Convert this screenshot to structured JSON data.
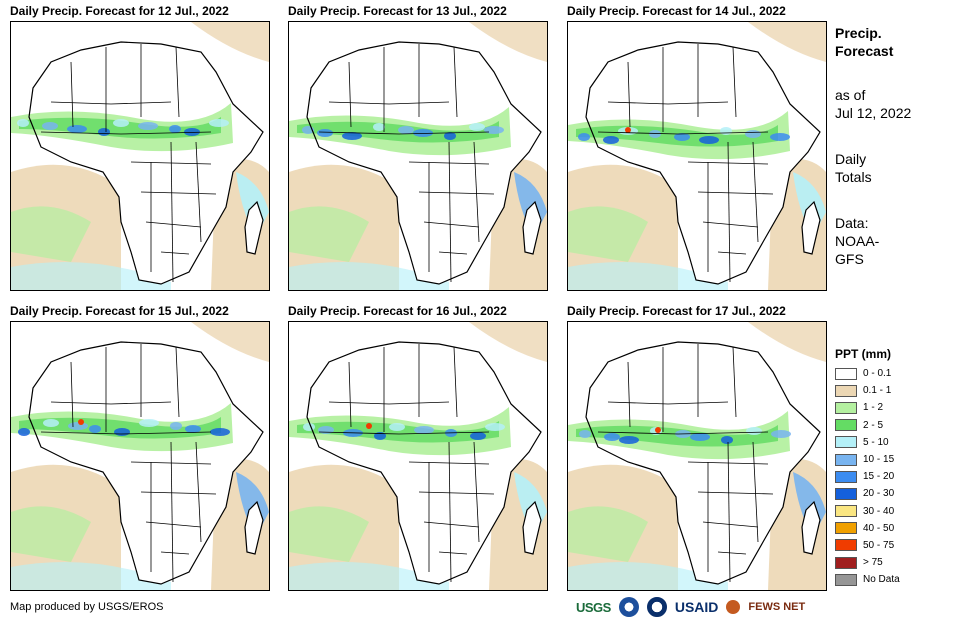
{
  "panels": [
    {
      "title": "Daily Precip. Forecast for 12 Jul., 2022"
    },
    {
      "title": "Daily Precip. Forecast for 13 Jul., 2022"
    },
    {
      "title": "Daily Precip. Forecast for 14 Jul., 2022"
    },
    {
      "title": "Daily Precip. Forecast for 15 Jul., 2022"
    },
    {
      "title": "Daily Precip. Forecast for 16 Jul., 2022"
    },
    {
      "title": "Daily Precip. Forecast for 17 Jul., 2022"
    }
  ],
  "side": {
    "heading_line1": "Precip.",
    "heading_line2": "Forecast",
    "asof_line1": "as of",
    "asof_line2": "Jul 12, 2022",
    "totals_line1": "Daily",
    "totals_line2": "Totals",
    "data_line1": "Data:",
    "data_line2": "NOAA-",
    "data_line3": "GFS"
  },
  "legend": {
    "title": "PPT (mm)",
    "items": [
      {
        "label": "0 - 0.1",
        "color": "#ffffff"
      },
      {
        "label": "0.1 - 1",
        "color": "#ecd7b4"
      },
      {
        "label": "1 - 2",
        "color": "#b4f0a0"
      },
      {
        "label": "2 - 5",
        "color": "#64dc64"
      },
      {
        "label": "5 - 10",
        "color": "#b4f0f8"
      },
      {
        "label": "10 - 15",
        "color": "#78b4f0"
      },
      {
        "label": "15 - 20",
        "color": "#3c8cf0"
      },
      {
        "label": "20 - 30",
        "color": "#1460dc"
      },
      {
        "label": "30 - 40",
        "color": "#fae682"
      },
      {
        "label": "40 - 50",
        "color": "#f0a000"
      },
      {
        "label": "50 - 75",
        "color": "#f03c00"
      },
      {
        "label": "> 75",
        "color": "#a01e1e"
      },
      {
        "label": "No Data",
        "color": "#969696"
      }
    ]
  },
  "credit": "Map produced by USGS/EROS",
  "logos": {
    "usgs": "USGS",
    "usaid": "USAID",
    "fews": "FEWS NET"
  }
}
